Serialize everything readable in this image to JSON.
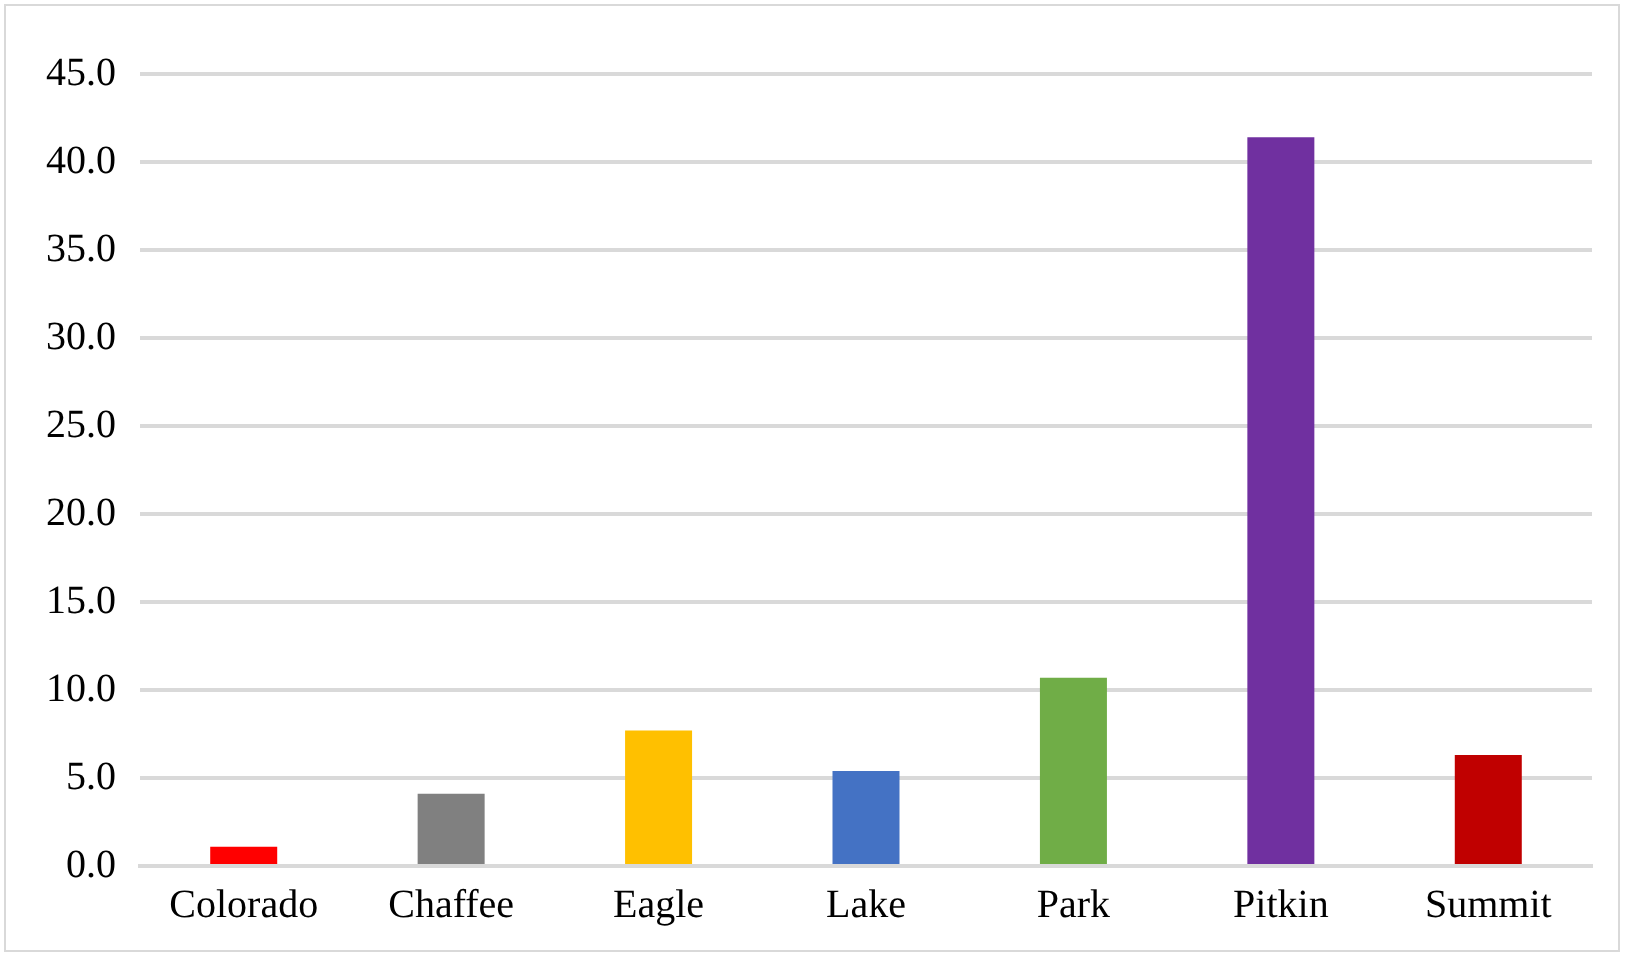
{
  "chart_data": {
    "type": "bar",
    "categories": [
      "Colorado",
      "Chaffee",
      "Eagle",
      "Lake",
      "Park",
      "Pitkin",
      "Summit"
    ],
    "values": [
      1.1,
      4.1,
      7.7,
      5.4,
      10.7,
      41.4,
      6.3
    ],
    "colors": [
      "#ff0000",
      "#808080",
      "#ffc000",
      "#4472c4",
      "#70ad47",
      "#7030a0",
      "#c00000"
    ],
    "ylim": [
      0,
      45
    ],
    "yticks": [
      {
        "value": 0,
        "label": "0.0"
      },
      {
        "value": 5,
        "label": "5.0"
      },
      {
        "value": 10,
        "label": "10.0"
      },
      {
        "value": 15,
        "label": "15.0"
      },
      {
        "value": 20,
        "label": "20.0"
      },
      {
        "value": 25,
        "label": "25.0"
      },
      {
        "value": 30,
        "label": "30.0"
      },
      {
        "value": 35,
        "label": "35.0"
      },
      {
        "value": 40,
        "label": "40.0"
      },
      {
        "value": 45,
        "label": "45.0"
      }
    ],
    "grid": "y",
    "legend": false
  }
}
